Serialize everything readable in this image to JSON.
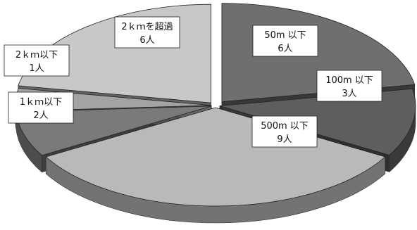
{
  "chart_data": {
    "type": "pie",
    "style": "3d-exploded",
    "slices": [
      {
        "category": "50m 以下",
        "value": 6,
        "value_label": "6人",
        "color": "#6f6f6f"
      },
      {
        "category": "100m 以下",
        "value": 3,
        "value_label": "3人",
        "color": "#5e5e5e"
      },
      {
        "category": "500m 以下",
        "value": 9,
        "value_label": "9人",
        "color": "#b9b9b9"
      },
      {
        "category": "1ｋｍ以下",
        "value": 2,
        "value_label": "2人",
        "color": "#7a7a7a"
      },
      {
        "category": "2ｋｍ以下",
        "value": 1,
        "value_label": "1人",
        "color": "#a3a3a3"
      },
      {
        "category": "2ｋｍを超過",
        "value": 6,
        "value_label": "6人",
        "color": "#c8c8c8"
      }
    ]
  }
}
